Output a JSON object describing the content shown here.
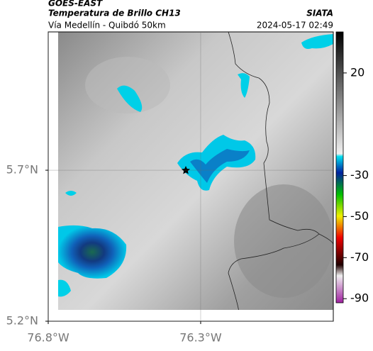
{
  "header": {
    "title": "GOES-EAST",
    "subtitle": "Temperatura de Brillo CH13",
    "region": "Vía Medellín - Quibdó 50km",
    "source": "SIATA",
    "timestamp": "2024-05-17 02:49"
  },
  "map": {
    "xlim": [
      -76.8,
      -75.865
    ],
    "ylim": [
      5.2,
      6.158
    ],
    "xticks": [
      {
        "value": -76.8,
        "label": "76.8°W"
      },
      {
        "value": -76.3,
        "label": "76.3°W"
      }
    ],
    "yticks": [
      {
        "value": 5.7,
        "label": "5.7°N"
      },
      {
        "value": 5.2,
        "label": "5.2°N"
      }
    ]
  },
  "colorbar": {
    "lim": [
      40,
      -92
    ],
    "ticks": [
      20,
      -30,
      -50,
      -70,
      -90
    ]
  }
}
